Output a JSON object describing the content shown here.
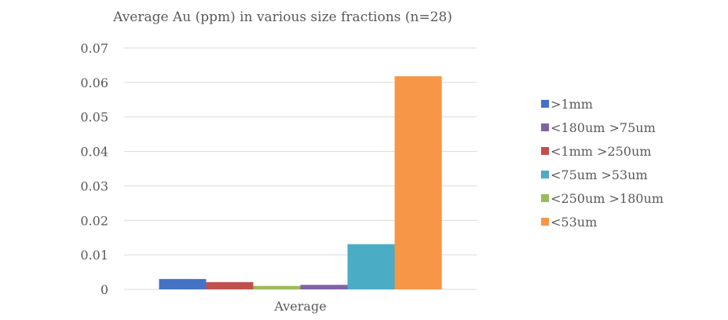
{
  "chart_data": {
    "type": "bar",
    "title": "Average Au (ppm) in various size fractions (n=28)",
    "categories": [
      "Average"
    ],
    "xlabel": "",
    "ylabel": "",
    "ylim": [
      0,
      0.07
    ],
    "yticks": [
      "0",
      "0.01",
      "0.02",
      "0.03",
      "0.04",
      "0.05",
      "0.06",
      "0.07"
    ],
    "ytick_values": [
      0,
      0.01,
      0.02,
      0.03,
      0.04,
      0.05,
      0.06,
      0.07
    ],
    "grid": true,
    "legend_position": "right",
    "series": [
      {
        "name": ">1mm",
        "values": [
          0.003
        ],
        "color": "#4472c4"
      },
      {
        "name": "<1mm >250um",
        "values": [
          0.0021
        ],
        "color": "#c0504d"
      },
      {
        "name": "<250um >180um",
        "values": [
          0.001
        ],
        "color": "#9bbb59"
      },
      {
        "name": "<180um >75um",
        "values": [
          0.0013
        ],
        "color": "#8064a2"
      },
      {
        "name": "<75um >53um",
        "values": [
          0.0131
        ],
        "color": "#4bacc6"
      },
      {
        "name": "<53um",
        "values": [
          0.0618
        ],
        "color": "#f79646"
      }
    ],
    "legend_order": [
      ">1mm",
      "<180um >75um",
      "<1mm >250um",
      "<75um >53um",
      "<250um >180um",
      "<53um"
    ]
  }
}
